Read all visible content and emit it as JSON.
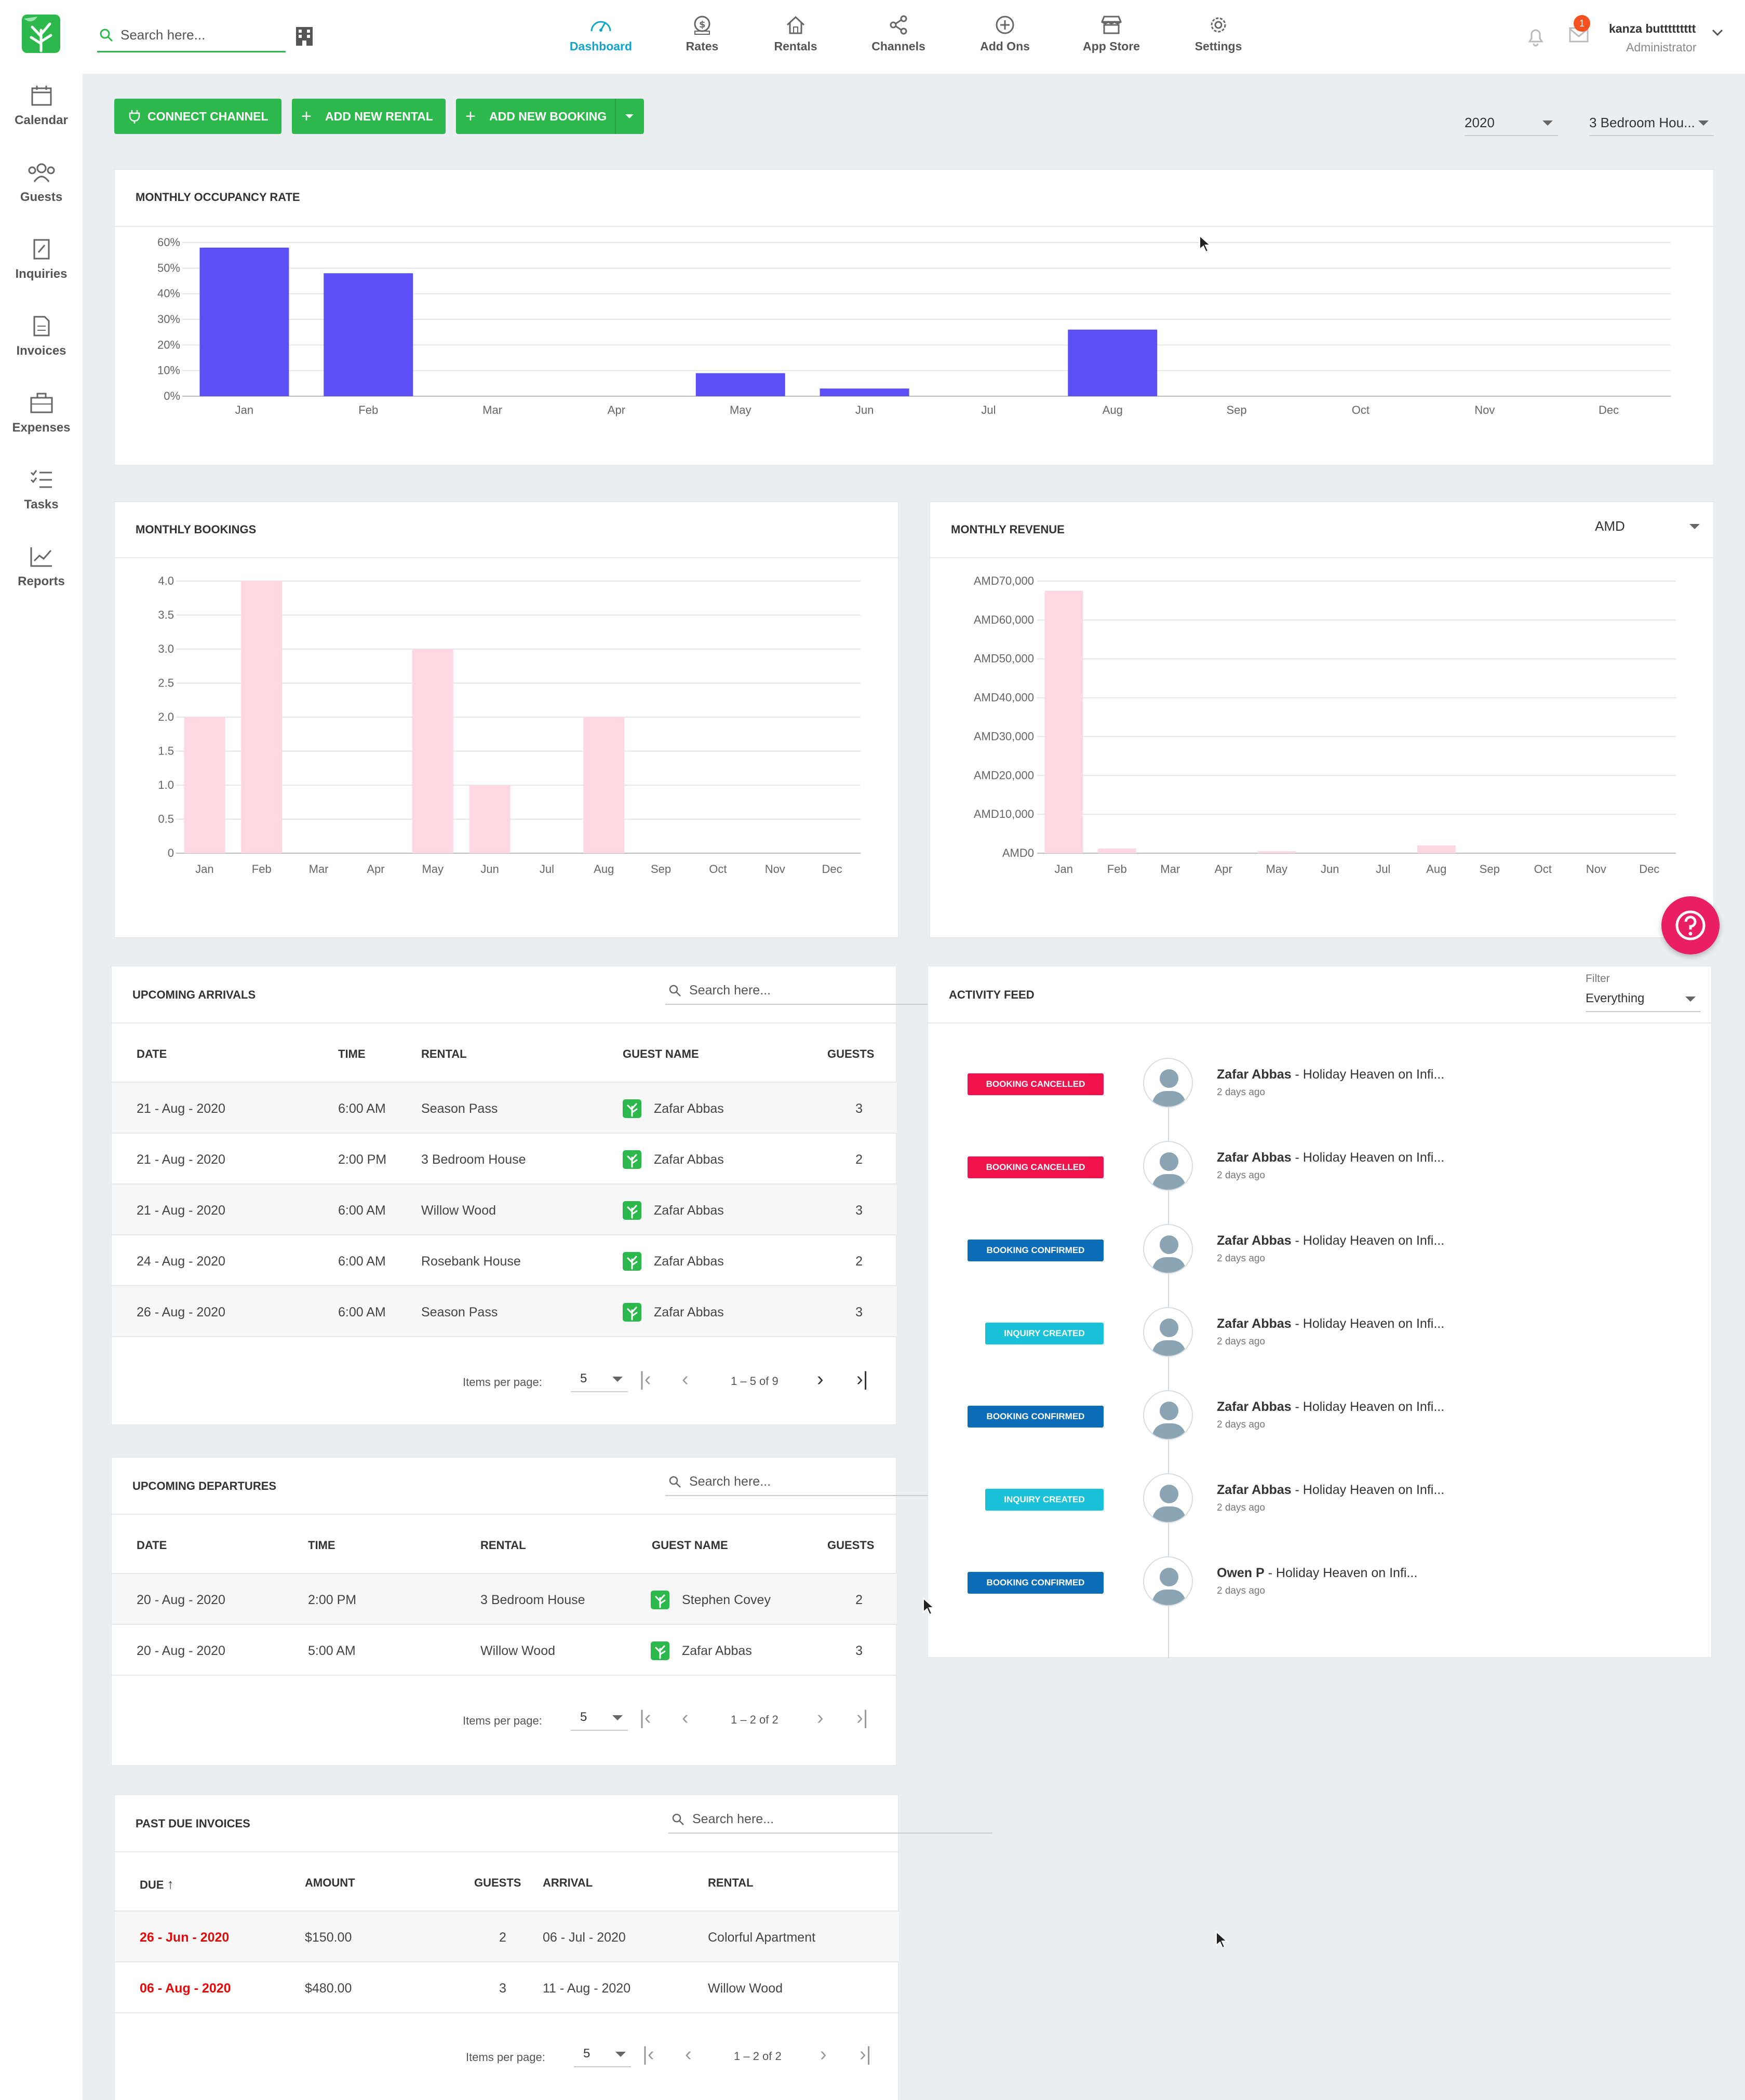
{
  "header": {
    "search_placeholder": "Search here...",
    "nav": [
      {
        "label": "Dashboard",
        "icon": "dashboard-icon",
        "active": true
      },
      {
        "label": "Rates",
        "icon": "rates-icon"
      },
      {
        "label": "Rentals",
        "icon": "home-icon"
      },
      {
        "label": "Channels",
        "icon": "share-icon"
      },
      {
        "label": "Add Ons",
        "icon": "plus-circle-icon"
      },
      {
        "label": "App Store",
        "icon": "store-icon"
      },
      {
        "label": "Settings",
        "icon": "gear-icon"
      }
    ],
    "mail_count": "1",
    "user_name": "kanza buttttttttt",
    "user_role": "Administrator"
  },
  "sidebar": {
    "items": [
      {
        "label": "Calendar",
        "icon": "calendar-icon"
      },
      {
        "label": "Guests",
        "icon": "guests-icon"
      },
      {
        "label": "Inquiries",
        "icon": "inquiries-icon"
      },
      {
        "label": "Invoices",
        "icon": "invoice-icon"
      },
      {
        "label": "Expenses",
        "icon": "briefcase-icon"
      },
      {
        "label": "Tasks",
        "icon": "tasks-icon"
      },
      {
        "label": "Reports",
        "icon": "reports-icon"
      }
    ]
  },
  "toolbar": {
    "connect_channel": "CONNECT CHANNEL",
    "add_rental": "ADD NEW RENTAL",
    "add_booking": "ADD NEW BOOKING",
    "year": "2020",
    "rental": "3 Bedroom Hou..."
  },
  "occupancy": {
    "title": "MONTHLY OCCUPANCY RATE"
  },
  "bookings": {
    "title": "MONTHLY BOOKINGS"
  },
  "revenue": {
    "title": "MONTHLY REVENUE",
    "currency": "AMD"
  },
  "chart_data": [
    {
      "type": "bar",
      "title": "MONTHLY OCCUPANCY RATE",
      "categories": [
        "Jan",
        "Feb",
        "Mar",
        "Apr",
        "May",
        "Jun",
        "Jul",
        "Aug",
        "Sep",
        "Oct",
        "Nov",
        "Dec"
      ],
      "values": [
        58,
        48,
        0,
        0,
        9,
        3,
        0,
        26,
        0,
        0,
        0,
        0
      ],
      "ylim": [
        0,
        60
      ],
      "yticks": [
        "0%",
        "10%",
        "20%",
        "30%",
        "40%",
        "50%",
        "60%"
      ],
      "color": "#5b4ff5"
    },
    {
      "type": "bar",
      "title": "MONTHLY BOOKINGS",
      "categories": [
        "Jan",
        "Feb",
        "Mar",
        "Apr",
        "May",
        "Jun",
        "Jul",
        "Aug",
        "Sep",
        "Oct",
        "Nov",
        "Dec"
      ],
      "values": [
        2,
        4,
        0,
        0,
        3,
        1,
        0,
        2,
        0,
        0,
        0,
        0
      ],
      "ylim": [
        0,
        4
      ],
      "yticks": [
        "0",
        "0.5",
        "1.0",
        "1.5",
        "2.0",
        "2.5",
        "3.0",
        "3.5",
        "4.0"
      ],
      "color": "#fdd8e3"
    },
    {
      "type": "bar",
      "title": "MONTHLY REVENUE",
      "categories": [
        "Jan",
        "Feb",
        "Mar",
        "Apr",
        "May",
        "Jun",
        "Jul",
        "Aug",
        "Sep",
        "Oct",
        "Nov",
        "Dec"
      ],
      "values": [
        67500,
        1200,
        0,
        0,
        500,
        0,
        0,
        2000,
        0,
        0,
        0,
        0
      ],
      "ylim": [
        0,
        70000
      ],
      "yticks": [
        "AMD0",
        "AMD10,000",
        "AMD20,000",
        "AMD30,000",
        "AMD40,000",
        "AMD50,000",
        "AMD60,000",
        "AMD70,000"
      ],
      "color": "#fdd8e3"
    }
  ],
  "arrivals": {
    "title": "UPCOMING ARRIVALS",
    "search_placeholder": "Search here...",
    "columns": [
      "DATE",
      "TIME",
      "RENTAL",
      "GUEST NAME",
      "GUESTS"
    ],
    "rows": [
      {
        "date": "21 - Aug - 2020",
        "time": "6:00 AM",
        "rental": "Season Pass",
        "guest": "Zafar Abbas",
        "guests": "3"
      },
      {
        "date": "21 - Aug - 2020",
        "time": "2:00 PM",
        "rental": "3 Bedroom House",
        "guest": "Zafar Abbas",
        "guests": "2"
      },
      {
        "date": "21 - Aug - 2020",
        "time": "6:00 AM",
        "rental": "Willow Wood",
        "guest": "Zafar Abbas",
        "guests": "3"
      },
      {
        "date": "24 - Aug - 2020",
        "time": "6:00 AM",
        "rental": "Rosebank House",
        "guest": "Zafar Abbas",
        "guests": "2"
      },
      {
        "date": "26 - Aug - 2020",
        "time": "6:00 AM",
        "rental": "Season Pass",
        "guest": "Zafar Abbas",
        "guests": "3"
      }
    ],
    "items_per_page_label": "Items per page:",
    "items_per_page": "5",
    "range": "1 – 5 of 9"
  },
  "departures": {
    "title": "UPCOMING DEPARTURES",
    "search_placeholder": "Search here...",
    "columns": [
      "DATE",
      "TIME",
      "RENTAL",
      "GUEST NAME",
      "GUESTS"
    ],
    "rows": [
      {
        "date": "20 - Aug - 2020",
        "time": "2:00 PM",
        "rental": "3 Bedroom House",
        "guest": "Stephen Covey",
        "guests": "2"
      },
      {
        "date": "20 - Aug - 2020",
        "time": "5:00 AM",
        "rental": "Willow Wood",
        "guest": "Zafar Abbas",
        "guests": "3"
      }
    ],
    "items_per_page_label": "Items per page:",
    "items_per_page": "5",
    "range": "1 – 2 of 2"
  },
  "invoices": {
    "title": "PAST DUE INVOICES",
    "search_placeholder": "Search here...",
    "columns": [
      "DUE",
      "AMOUNT",
      "GUESTS",
      "ARRIVAL",
      "RENTAL"
    ],
    "rows": [
      {
        "due": "26 - Jun - 2020",
        "amount": "$150.00",
        "guests": "2",
        "arrival": "06 - Jul - 2020",
        "rental": "Colorful Apartment"
      },
      {
        "due": "06 - Aug - 2020",
        "amount": "$480.00",
        "guests": "3",
        "arrival": "11 - Aug - 2020",
        "rental": "Willow Wood"
      }
    ],
    "items_per_page_label": "Items per page:",
    "items_per_page": "5",
    "range": "1 – 2 of 2"
  },
  "activity": {
    "title": "ACTIVITY FEED",
    "filter_label": "Filter",
    "filter_value": "Everything",
    "items": [
      {
        "badge": "BOOKING CANCELLED",
        "badge_color": "#f0134d",
        "name": "Zafar Abbas",
        "text": " - Holiday Heaven on Infi...",
        "time": "2 days ago"
      },
      {
        "badge": "BOOKING CANCELLED",
        "badge_color": "#f0134d",
        "name": "Zafar Abbas",
        "text": " - Holiday Heaven on Infi...",
        "time": "2 days ago"
      },
      {
        "badge": "BOOKING CONFIRMED",
        "badge_color": "#0b6db8",
        "name": "Zafar Abbas",
        "text": " - Holiday Heaven on Infi...",
        "time": "2 days ago"
      },
      {
        "badge": "INQUIRY CREATED",
        "badge_color": "#19c2d8",
        "name": "Zafar Abbas",
        "text": " - Holiday Heaven on Infi...",
        "time": "2 days ago"
      },
      {
        "badge": "BOOKING CONFIRMED",
        "badge_color": "#0b6db8",
        "name": "Zafar Abbas",
        "text": " - Holiday Heaven on Infi...",
        "time": "2 days ago"
      },
      {
        "badge": "INQUIRY CREATED",
        "badge_color": "#19c2d8",
        "name": "Zafar Abbas",
        "text": " - Holiday Heaven on Infi...",
        "time": "2 days ago"
      },
      {
        "badge": "BOOKING CONFIRMED",
        "badge_color": "#0b6db8",
        "name": "Owen P",
        "text": " - Holiday Heaven on Infi...",
        "time": "2 days ago"
      }
    ]
  }
}
